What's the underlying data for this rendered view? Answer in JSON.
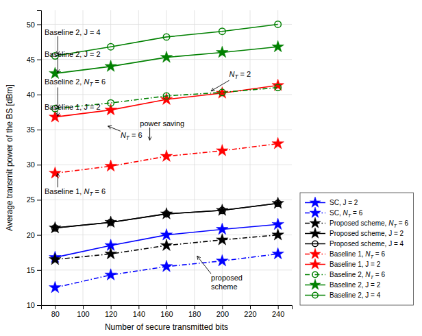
{
  "chart_data": {
    "type": "line",
    "xlabel": "Number of secure transmitted bits",
    "ylabel": "Average transmit power of the BS [dBm]",
    "x": [
      80,
      120,
      160,
      200,
      240
    ],
    "series": [
      {
        "name": "SC, J = 2",
        "color": "blue",
        "line_style": "solid",
        "marker": "star",
        "values": [
          16.8,
          18.5,
          20.0,
          20.8,
          21.5
        ]
      },
      {
        "name": "SC, NT = 6",
        "color": "blue",
        "line_style": "dashdot",
        "marker": "star",
        "values": [
          12.5,
          14.3,
          15.5,
          16.3,
          17.3
        ]
      },
      {
        "name": "Proposed scheme, NT = 6",
        "color": "black",
        "line_style": "dashdot",
        "marker": "star",
        "values": [
          16.5,
          17.3,
          18.5,
          19.3,
          20.0
        ]
      },
      {
        "name": "Proposed scheme, J = 2",
        "color": "black",
        "line_style": "solid",
        "marker": "star",
        "values": [
          21.0,
          21.8,
          23.0,
          23.5,
          24.5
        ]
      },
      {
        "name": "Proposed scheme, J = 4",
        "color": "black",
        "line_style": "solid",
        "marker": "circle-open",
        "values": [
          21.0,
          21.8,
          23.0,
          23.5,
          24.5
        ]
      },
      {
        "name": "Baseline 1, NT = 6",
        "color": "red",
        "line_style": "dashdot",
        "marker": "star",
        "values": [
          28.8,
          29.8,
          31.2,
          32.0,
          33.0
        ]
      },
      {
        "name": "Baseline 1, J = 2",
        "color": "red",
        "line_style": "solid",
        "marker": "star",
        "values": [
          36.8,
          37.8,
          39.3,
          40.2,
          41.3
        ]
      },
      {
        "name": "Baseline 2, NT = 6",
        "color": "green",
        "line_style": "dashdot",
        "marker": "circle-open",
        "values": [
          38.0,
          38.8,
          39.8,
          40.3,
          41.0
        ]
      },
      {
        "name": "Baseline 2, J = 2",
        "color": "green",
        "line_style": "solid",
        "marker": "star",
        "values": [
          43.0,
          44.0,
          45.3,
          46.0,
          46.8
        ]
      },
      {
        "name": "Baseline 2, J = 4",
        "color": "green",
        "line_style": "solid",
        "marker": "circle-open",
        "values": [
          45.5,
          46.8,
          48.2,
          49.0,
          50.0
        ]
      }
    ],
    "xlim": [
      70,
      250
    ],
    "ylim": [
      10,
      52
    ],
    "xticks": [
      80,
      100,
      120,
      140,
      160,
      180,
      200,
      220,
      240
    ],
    "yticks": [
      10,
      15,
      20,
      25,
      30,
      35,
      40,
      45,
      50
    ],
    "grid": true,
    "legend": "lower right",
    "annotations": [
      {
        "text": "Baseline 2, J = 4",
        "x": 82,
        "y": 45.7,
        "text_x": 62,
        "text_y": 48.5
      },
      {
        "text": "Baseline 2, J = 2",
        "x": 82,
        "y": 43.1,
        "text_x": 62,
        "text_y": 45.4
      },
      {
        "text": "Baseline 2, NT = 6",
        "x": 82,
        "y": 38.1,
        "text_x": 62,
        "text_y": 41.5
      },
      {
        "text": "Baseline 1, J = 2",
        "x": 82,
        "y": 36.9,
        "text_x": 62,
        "text_y": 37.8
      },
      {
        "text": "Baseline 1, NT = 6",
        "x": 82,
        "y": 28.8,
        "text_x": 62,
        "text_y": 25.8
      },
      {
        "text": "NT = 6",
        "x": 118,
        "y": 35.5,
        "text_x": 127,
        "text_y": 33.8
      },
      {
        "text": "NT = 2",
        "x": 192,
        "y": 40.5,
        "text_x": 205,
        "text_y": 42.5
      },
      {
        "text": "power saving",
        "x": 148,
        "y": 33.5,
        "text_x": 141,
        "text_y": 35.5
      },
      {
        "text": "proposed\nscheme",
        "x": 182,
        "y": 17.0,
        "text_x": 192,
        "text_y": 13.5
      }
    ]
  }
}
